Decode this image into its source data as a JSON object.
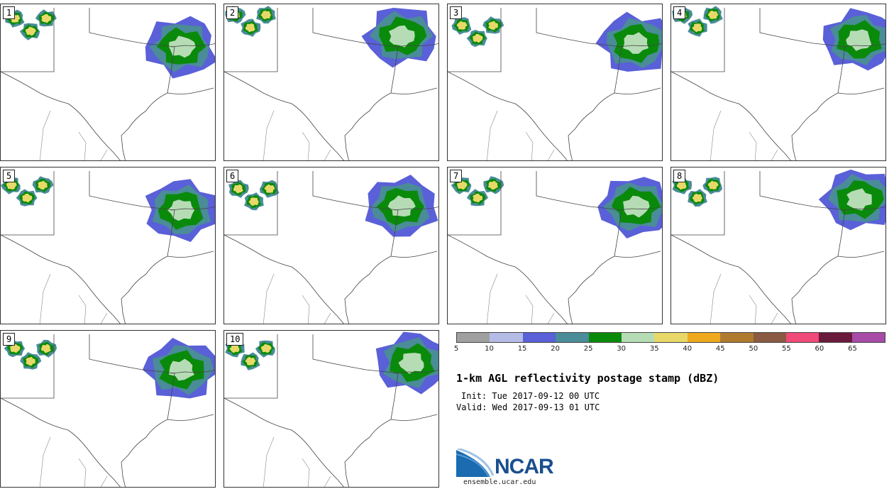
{
  "panels": [
    {
      "label": "1"
    },
    {
      "label": "2"
    },
    {
      "label": "3"
    },
    {
      "label": "4"
    },
    {
      "label": "5"
    },
    {
      "label": "6"
    },
    {
      "label": "7"
    },
    {
      "label": "8"
    },
    {
      "label": "9"
    },
    {
      "label": "10"
    }
  ],
  "colorbar": {
    "colors": [
      "#a0a0a0",
      "#b4bce6",
      "#5a60d8",
      "#4a8c98",
      "#0a8a0a",
      "#b6dcb6",
      "#e8d86a",
      "#eea91e",
      "#b07a2e",
      "#8a5a42",
      "#f04a78",
      "#6a1a3a",
      "#a84aa8"
    ],
    "ticks": [
      "5",
      "10",
      "15",
      "20",
      "25",
      "30",
      "35",
      "40",
      "45",
      "50",
      "55",
      "60",
      "65"
    ]
  },
  "title": "1-km AGL reflectivity postage stamp (dBZ)",
  "init": "Init: Tue 2017-09-12 00 UTC",
  "valid": "Valid: Wed 2017-09-13 01 UTC",
  "logo": {
    "text": "NCAR",
    "site": "ensemble.ucar.edu"
  }
}
